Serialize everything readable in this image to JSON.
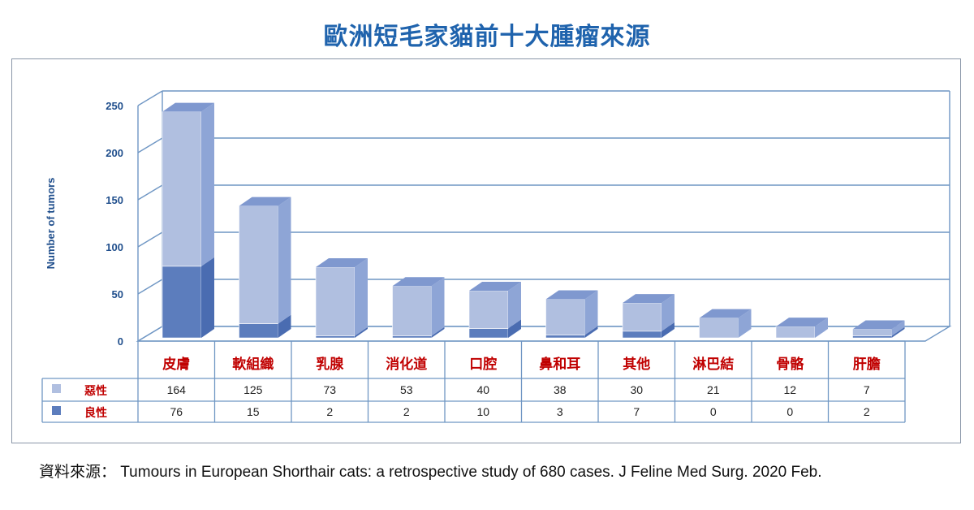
{
  "title": "歐洲短毛家貓前十大腫瘤來源",
  "source": "資料來源： Tumours in European Shorthair cats: a retrospective study of 680 cases. J Feline Med Surg. 2020 Feb.",
  "colors": {
    "malignant_front": "#b0bfe0",
    "malignant_side": "#8ea5d6",
    "benign_front": "#5c7dbd",
    "benign_side": "#4a6cb1",
    "grid": "#6f96c4",
    "axis_text": "#1f4e8c",
    "category_text": "#c00000"
  },
  "chart_data": {
    "type": "bar",
    "stacked": true,
    "three_d": true,
    "categories": [
      "皮膚",
      "軟組織",
      "乳腺",
      "消化道",
      "口腔",
      "鼻和耳",
      "其他",
      "淋巴結",
      "骨骼",
      "肝膽"
    ],
    "series": [
      {
        "name": "惡性",
        "values": [
          164,
          125,
          73,
          53,
          40,
          38,
          30,
          21,
          12,
          7
        ]
      },
      {
        "name": "良性",
        "values": [
          76,
          15,
          2,
          2,
          10,
          3,
          7,
          0,
          0,
          2
        ]
      }
    ],
    "ylabel": "Number of tumors",
    "ylim": [
      0,
      250
    ],
    "yticks": [
      0,
      50,
      100,
      150,
      200,
      250
    ],
    "grid": true,
    "data_table": true
  }
}
